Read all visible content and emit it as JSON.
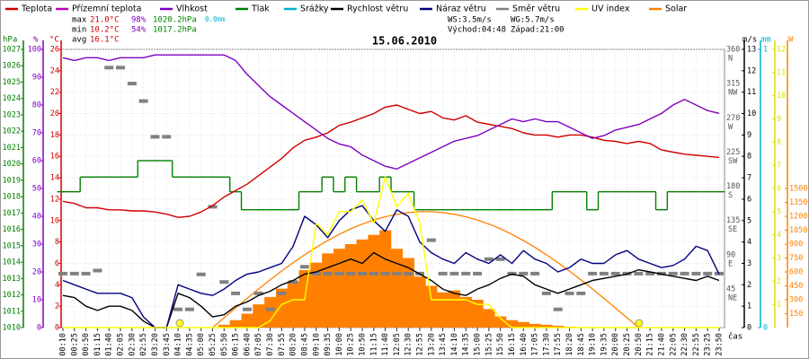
{
  "chart_data": {
    "type": "line",
    "title": "15.06.2010",
    "x_label": "čas",
    "grid": true,
    "stats": [
      {
        "label": "max",
        "temp": "21.0°C",
        "hum": "98%",
        "pres": "1020.2hPa",
        "rain": "0.0mm"
      },
      {
        "label": "min",
        "temp": "10.2°C",
        "hum": "54%",
        "pres": "1017.2hPa"
      },
      {
        "label": "avg",
        "temp": "16.1°C"
      }
    ],
    "wind_info": [
      "WS:3.5m/s",
      "WG:5.7m/s",
      "Východ:04:48",
      "Západ:21:00"
    ],
    "categories": [
      "00:10",
      "00:25",
      "00:50",
      "01:15",
      "01:40",
      "02:05",
      "02:30",
      "02:55",
      "03:20",
      "03:45",
      "04:10",
      "04:35",
      "05:00",
      "05:25",
      "05:50",
      "06:15",
      "06:40",
      "07:05",
      "07:30",
      "07:55",
      "08:20",
      "08:45",
      "09:10",
      "09:35",
      "10:00",
      "10:25",
      "10:50",
      "11:15",
      "11:40",
      "12:05",
      "12:30",
      "12:55",
      "13:20",
      "13:45",
      "14:10",
      "14:35",
      "15:00",
      "15:25",
      "15:50",
      "16:15",
      "16:40",
      "17:05",
      "17:30",
      "17:55",
      "18:20",
      "18:45",
      "19:10",
      "19:35",
      "20:00",
      "20:25",
      "20:50",
      "21:15",
      "21:40",
      "22:05",
      "22:30",
      "22:55",
      "23:25",
      "23:50"
    ],
    "axes": {
      "hpa": {
        "label": "hPa",
        "color": "#008000",
        "lim": [
          1010,
          1027
        ],
        "ticks": [
          1010,
          1011,
          1012,
          1013,
          1014,
          1015,
          1016,
          1017,
          1018,
          1019,
          1020,
          1021,
          1022,
          1023,
          1024,
          1025,
          1026,
          1027
        ]
      },
      "hum": {
        "label": "%",
        "color": "#8000c0",
        "lim": [
          0,
          100
        ],
        "ticks": [
          0,
          10,
          20,
          30,
          40,
          50,
          60,
          70,
          80,
          90,
          100
        ]
      },
      "temp": {
        "label": "°C",
        "color": "#d00000",
        "lim": [
          0,
          26
        ],
        "ticks": [
          0,
          2,
          4,
          6,
          8,
          10,
          12,
          14,
          16,
          18,
          20,
          22,
          24,
          26
        ]
      },
      "dir": {
        "lim": [
          0,
          366
        ],
        "ticks": [
          45,
          90,
          135,
          180,
          225,
          270,
          315,
          360
        ],
        "compass": [
          "NE",
          "E",
          "SE",
          "S",
          "SW",
          "W",
          "NW",
          "N"
        ]
      },
      "ms": {
        "label": "m/s",
        "color": "#000000",
        "lim": [
          0,
          13
        ],
        "ticks": [
          0,
          1,
          2,
          3,
          4,
          5,
          6,
          7,
          8,
          9,
          10,
          11,
          12,
          13
        ]
      },
      "mm": {
        "label": "mm",
        "color": "#00b0d0",
        "lim": [
          0,
          1
        ],
        "ticks": [
          0,
          1
        ]
      },
      "uv": {
        "color": "#e0e000",
        "lim": [
          0,
          12
        ],
        "ticks": [
          1,
          2,
          3,
          4,
          5,
          6,
          7,
          8,
          9,
          10,
          11,
          12
        ]
      },
      "w": {
        "label": "W",
        "color": "#ff8000",
        "lim": [
          0,
          3000
        ],
        "ticks": [
          150,
          300,
          450,
          600,
          750,
          900,
          1050,
          1200,
          1350,
          1500
        ]
      }
    },
    "series": [
      {
        "name": "Teplota",
        "color": "#d00000",
        "axis": "temp",
        "style": "line",
        "values": [
          11.8,
          11.6,
          11.2,
          11.2,
          11.0,
          11.0,
          10.9,
          10.9,
          10.8,
          10.6,
          10.3,
          10.4,
          10.8,
          11.4,
          12.2,
          12.8,
          13.4,
          14.2,
          15.0,
          15.8,
          16.8,
          17.5,
          17.8,
          18.2,
          18.9,
          19.2,
          19.6,
          20.0,
          20.6,
          20.8,
          20.4,
          20.0,
          20.2,
          19.6,
          19.4,
          19.8,
          19.2,
          19.0,
          18.8,
          18.6,
          18.2,
          18.0,
          18.0,
          17.8,
          18.0,
          18.0,
          17.8,
          17.5,
          17.4,
          17.2,
          17.4,
          17.2,
          16.6,
          16.4,
          16.2,
          16.1,
          16.0,
          15.9
        ]
      },
      {
        "name": "Přízemní teplota",
        "color": "#c000c0"
      },
      {
        "name": "Vlhkost",
        "color": "#8000c0",
        "axis": "hum",
        "style": "line",
        "values": [
          97,
          96,
          97,
          97,
          96,
          97,
          97,
          97,
          98,
          98,
          98,
          98,
          98,
          98,
          98,
          96,
          91,
          87,
          83,
          80,
          77,
          74,
          71,
          68,
          66,
          65,
          62,
          60,
          58,
          57,
          59,
          61,
          63,
          65,
          67,
          68,
          69,
          71,
          73,
          75,
          74,
          75,
          74,
          74,
          72,
          70,
          68,
          69,
          71,
          72,
          73,
          75,
          77,
          80,
          82,
          80,
          78,
          77
        ]
      },
      {
        "name": "Tlak",
        "color": "#008000",
        "axis": "hpa",
        "style": "step",
        "values": [
          1018.3,
          1018.3,
          1019.2,
          1019.2,
          1019.2,
          1019.2,
          1019.2,
          1020.2,
          1020.2,
          1020.2,
          1019.2,
          1019.2,
          1019.2,
          1019.2,
          1019.2,
          1018.3,
          1017.2,
          1017.2,
          1017.2,
          1017.2,
          1017.2,
          1018.3,
          1018.3,
          1019.2,
          1018.3,
          1019.2,
          1018.3,
          1018.3,
          1019.2,
          1018.3,
          1018.3,
          1017.2,
          1017.2,
          1017.2,
          1017.2,
          1017.2,
          1017.2,
          1017.2,
          1017.2,
          1017.2,
          1017.2,
          1017.2,
          1017.2,
          1018.3,
          1018.3,
          1018.3,
          1017.2,
          1018.3,
          1018.3,
          1018.3,
          1018.3,
          1018.3,
          1017.2,
          1018.3,
          1018.3,
          1018.3,
          1018.3,
          1018.3
        ]
      },
      {
        "name": "Srážky",
        "color": "#00b0d0"
      },
      {
        "name": "Rychlost větru",
        "color": "#000000",
        "axis": "ms",
        "style": "line",
        "values": [
          1.5,
          1.4,
          1.0,
          0.8,
          1.0,
          1.0,
          0.8,
          0.3,
          0,
          0,
          1.6,
          1.4,
          1.0,
          0.5,
          0.6,
          1.0,
          1.2,
          1.5,
          1.7,
          2.0,
          2.2,
          2.5,
          2.6,
          2.8,
          3.0,
          3.2,
          3.0,
          3.5,
          3.2,
          3.0,
          2.8,
          2.5,
          2.2,
          1.8,
          1.6,
          1.5,
          1.8,
          2.0,
          2.3,
          2.5,
          2.4,
          2.0,
          1.8,
          1.6,
          1.8,
          2.0,
          2.2,
          2.3,
          2.4,
          2.5,
          2.7,
          2.6,
          2.5,
          2.4,
          2.3,
          2.2,
          2.4,
          2.2
        ]
      },
      {
        "name": "Náraz větru",
        "color": "#000080",
        "axis": "ms",
        "style": "line",
        "values": [
          2.2,
          2.0,
          1.8,
          1.6,
          1.6,
          1.6,
          1.4,
          0.5,
          0,
          0,
          2.0,
          1.8,
          1.6,
          1.5,
          1.8,
          2.2,
          2.5,
          2.6,
          2.8,
          3.0,
          3.8,
          5.2,
          4.8,
          4.2,
          5.0,
          5.5,
          5.7,
          5.0,
          4.5,
          5.5,
          5.2,
          4.0,
          3.5,
          3.2,
          3.0,
          3.5,
          3.2,
          3.0,
          3.4,
          3.0,
          3.6,
          3.2,
          3.0,
          2.6,
          2.8,
          3.2,
          3.0,
          3.0,
          3.4,
          3.6,
          3.2,
          3.0,
          2.8,
          2.9,
          3.2,
          3.8,
          3.6,
          2.5
        ]
      },
      {
        "name": "Směr větru",
        "color": "#808080",
        "axis": "dir",
        "style": "dash",
        "values": [
          71,
          71,
          71,
          75,
          342,
          342,
          321,
          298,
          251,
          251,
          24,
          24,
          70,
          159,
          60,
          45,
          24,
          45,
          24,
          45,
          60,
          80,
          71,
          71,
          71,
          71,
          71,
          71,
          71,
          71,
          71,
          71,
          115,
          71,
          71,
          71,
          71,
          90,
          90,
          71,
          71,
          71,
          45,
          24,
          45,
          45,
          71,
          71,
          71,
          71,
          71,
          71,
          71,
          71,
          71,
          71,
          71,
          71
        ]
      },
      {
        "name": "UV index",
        "color": "#ffff00",
        "axis": "uv",
        "style": "line",
        "values": [
          0,
          0,
          0,
          0,
          0,
          0,
          0,
          0,
          0,
          0,
          0,
          0,
          0,
          0,
          0,
          0,
          0,
          0,
          0.3,
          1.0,
          1.2,
          1.2,
          4.5,
          4.0,
          5.0,
          5.0,
          5.5,
          4.5,
          6.5,
          5.2,
          5.8,
          4.5,
          1.2,
          1.2,
          1.2,
          1.2,
          1.0,
          1.0,
          0.4,
          0,
          0,
          0,
          0,
          0,
          0,
          0,
          0,
          0,
          0,
          0,
          0,
          0,
          0,
          0,
          0,
          0,
          0,
          0
        ]
      },
      {
        "name": "Solar",
        "color": "#ff8000",
        "axis": "w",
        "style": "area",
        "values": [
          0,
          0,
          0,
          0,
          0,
          0,
          0,
          0,
          0,
          0,
          0,
          0,
          0,
          0,
          30,
          80,
          150,
          250,
          330,
          420,
          500,
          620,
          700,
          800,
          850,
          900,
          950,
          1000,
          1050,
          850,
          750,
          550,
          450,
          380,
          400,
          330,
          300,
          200,
          120,
          80,
          60,
          40,
          30,
          20,
          10,
          5,
          0,
          0,
          0,
          0,
          0,
          0,
          0,
          0,
          0,
          0,
          0,
          0
        ],
        "clear_sky_values": [
          null,
          null,
          null,
          null,
          null,
          null,
          null,
          null,
          null,
          null,
          null,
          null,
          null,
          0,
          106,
          211,
          315,
          416,
          515,
          610,
          700,
          785,
          865,
          939,
          1005,
          1065,
          1116,
          1160,
          1195,
          1221,
          1240,
          1249,
          1249,
          1240,
          1221,
          1195,
          1160,
          1116,
          1065,
          1005,
          939,
          865,
          785,
          700,
          610,
          515,
          416,
          315,
          211,
          106,
          0,
          null,
          null,
          null,
          null,
          null,
          null,
          null
        ]
      }
    ]
  }
}
